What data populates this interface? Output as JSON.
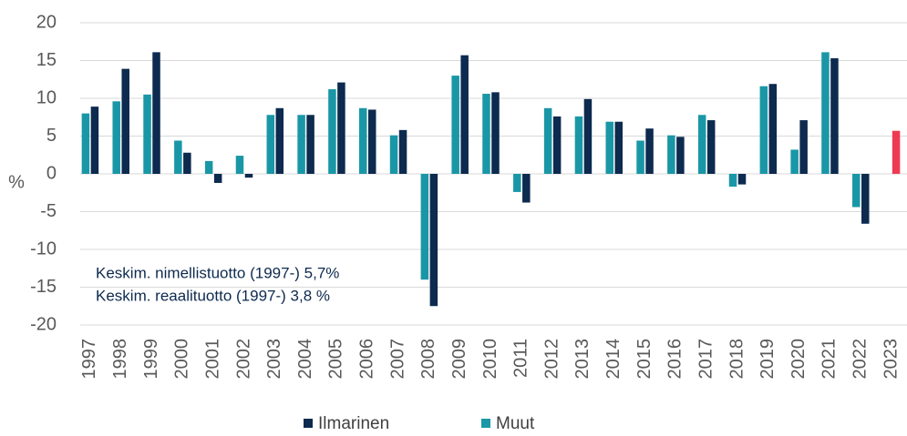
{
  "chart_data": {
    "type": "bar",
    "categories": [
      "1997",
      "1998",
      "1999",
      "2000",
      "2001",
      "2002",
      "2003",
      "2004",
      "2005",
      "2006",
      "2007",
      "2008",
      "2009",
      "2010",
      "2011",
      "2012",
      "2013",
      "2014",
      "2015",
      "2016",
      "2017",
      "2018",
      "2019",
      "2020",
      "2021",
      "2022",
      "2023"
    ],
    "series": [
      {
        "name": "Ilmarinen",
        "color": "#0d2a4f",
        "values": [
          8.9,
          13.9,
          16.1,
          2.8,
          -1.2,
          -0.5,
          8.7,
          7.8,
          12.1,
          8.5,
          5.8,
          -17.5,
          15.7,
          10.8,
          -3.8,
          7.6,
          9.9,
          6.9,
          6.0,
          4.9,
          7.1,
          -1.4,
          11.9,
          7.1,
          15.3,
          -6.6,
          5.7
        ]
      },
      {
        "name": "Muut",
        "color": "#1a97a6",
        "values": [
          8.0,
          9.6,
          10.5,
          4.4,
          1.7,
          2.4,
          7.8,
          7.8,
          11.2,
          8.7,
          5.1,
          -14.0,
          13.0,
          10.6,
          -2.4,
          8.7,
          7.6,
          6.9,
          4.4,
          5.1,
          7.8,
          -1.7,
          11.6,
          3.2,
          16.1,
          -4.4,
          null
        ]
      }
    ],
    "highlight": {
      "category": "2023",
      "color": "#ee3a52"
    },
    "y_label": "%",
    "annotations": [
      "Keskim. nimellistuotto (1997-) 5,7%",
      "Keskim. reaalituotto (1997-) 3,8 %"
    ],
    "ylim": [
      -20,
      20
    ],
    "yticks": [
      -20,
      -15,
      -10,
      -5,
      0,
      5,
      10,
      15,
      20
    ],
    "grid": true,
    "legend": "bottom"
  }
}
